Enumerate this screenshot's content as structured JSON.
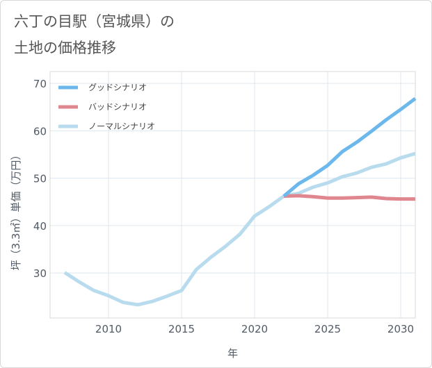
{
  "title": "六丁の目駅（宮城県）の\n土地の価格推移",
  "chart_data": {
    "type": "line",
    "xlabel": "年",
    "ylabel": "坪（3.3㎡）単価（万円）",
    "xlim": [
      2006,
      2031
    ],
    "ylim": [
      20.5,
      72.5
    ],
    "xticks": [
      2010,
      2015,
      2020,
      2025,
      2030
    ],
    "yticks": [
      30,
      40,
      50,
      60,
      70
    ],
    "grid": true,
    "legend_position": "top-left",
    "series": [
      {
        "name": "グッドシナリオ",
        "color": "#6cb8ec",
        "x": [
          2022,
          2023,
          2024,
          2025,
          2026,
          2027,
          2028,
          2029,
          2030,
          2031
        ],
        "y": [
          46.2,
          48.8,
          50.6,
          52.7,
          55.6,
          57.6,
          59.9,
          62.3,
          64.5,
          66.8
        ]
      },
      {
        "name": "バッドシナリオ",
        "color": "#e0868f",
        "x": [
          2022,
          2023,
          2024,
          2025,
          2026,
          2027,
          2028,
          2029,
          2030,
          2031
        ],
        "y": [
          46.2,
          46.3,
          46.1,
          45.8,
          45.8,
          45.9,
          46.0,
          45.7,
          45.6,
          45.6
        ]
      },
      {
        "name": "ノーマルシナリオ",
        "color": "#b8dcee",
        "x": [
          2007,
          2008,
          2009,
          2010,
          2011,
          2012,
          2013,
          2014,
          2015,
          2016,
          2017,
          2018,
          2019,
          2020,
          2021,
          2022,
          2023,
          2024,
          2025,
          2026,
          2027,
          2028,
          2029,
          2030,
          2031
        ],
        "y": [
          30.1,
          28.1,
          26.3,
          25.2,
          23.8,
          23.3,
          24.0,
          25.1,
          26.3,
          30.7,
          33.3,
          35.6,
          38.2,
          42.0,
          44.0,
          46.2,
          46.8,
          48.1,
          49.0,
          50.3,
          51.1,
          52.3,
          53.0,
          54.3,
          55.2
        ]
      }
    ]
  }
}
